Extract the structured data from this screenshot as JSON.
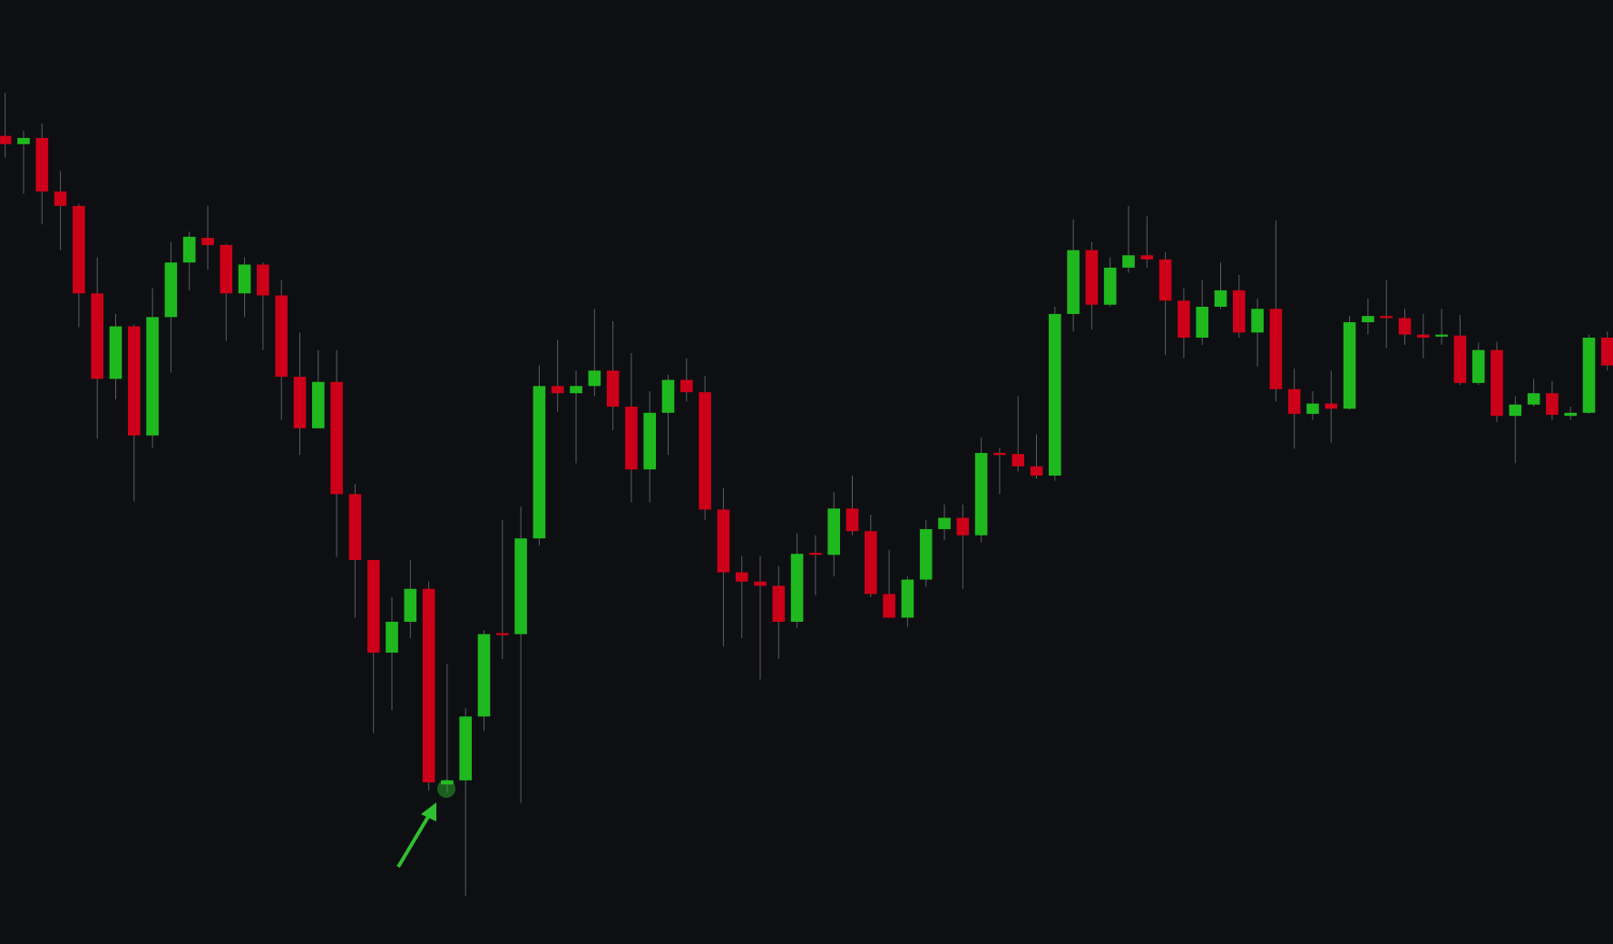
{
  "chart_data": {
    "type": "candlestick",
    "open": [
      785,
      777,
      783,
      731,
      717,
      632,
      549,
      600,
      494,
      609,
      662,
      686,
      679,
      632,
      660,
      630,
      551,
      501,
      546,
      437,
      373,
      283,
      313,
      345,
      155,
      159,
      221,
      302,
      301,
      394,
      542,
      535,
      542,
      557,
      522,
      461,
      516,
      548,
      536,
      422,
      361,
      352,
      348,
      313,
      380,
      378,
      423,
      401,
      340,
      317,
      354,
      403,
      414,
      397,
      477,
      476,
      464,
      455,
      612,
      674,
      621,
      657,
      669,
      665,
      625,
      589,
      619,
      635,
      594,
      617,
      539,
      515,
      525,
      520,
      604,
      610,
      608,
      592,
      590,
      591,
      545,
      577,
      513,
      524,
      535,
      513,
      516,
      589
    ],
    "high": [
      827,
      790,
      797,
      751,
      719,
      667,
      612,
      602,
      637,
      682,
      692,
      717,
      680,
      667,
      662,
      645,
      594,
      577,
      577,
      447,
      373,
      337,
      373,
      352,
      272,
      229,
      305,
      412,
      425,
      562,
      587,
      557,
      617,
      605,
      574,
      537,
      553,
      569,
      552,
      443,
      377,
      377,
      367,
      399,
      397,
      439,
      455,
      417,
      383,
      357,
      412,
      427,
      427,
      492,
      482,
      532,
      495,
      619,
      704,
      682,
      667,
      717,
      707,
      672,
      637,
      645,
      662,
      650,
      627,
      703,
      559,
      537,
      557,
      610,
      627,
      645,
      617,
      612,
      617,
      611,
      584,
      585,
      532,
      549,
      547,
      522,
      592,
      595
    ],
    "low": [
      764,
      729,
      699,
      674,
      599,
      491,
      529,
      430,
      482,
      555,
      635,
      655,
      586,
      609,
      577,
      509,
      475,
      501,
      376,
      317,
      205,
      227,
      297,
      149,
      147,
      47,
      207,
      277,
      137,
      387,
      517,
      467,
      532,
      499,
      429,
      429,
      475,
      527,
      412,
      289,
      297,
      257,
      277,
      307,
      339,
      357,
      397,
      337,
      317,
      308,
      347,
      392,
      345,
      390,
      437,
      459,
      452,
      450,
      595,
      597,
      619,
      652,
      657,
      572,
      569,
      582,
      617,
      589,
      561,
      527,
      481,
      509,
      487,
      519,
      592,
      579,
      582,
      569,
      582,
      543,
      543,
      507,
      467,
      522,
      509,
      509,
      515,
      557
    ],
    "close": [
      777,
      783,
      731,
      717,
      632,
      549,
      600,
      494,
      609,
      662,
      687,
      679,
      632,
      660,
      630,
      551,
      501,
      546,
      437,
      373,
      283,
      313,
      345,
      157,
      159,
      221,
      301,
      300,
      394,
      542,
      535,
      542,
      557,
      522,
      461,
      516,
      548,
      536,
      422,
      361,
      352,
      348,
      313,
      379,
      378,
      423,
      401,
      340,
      317,
      354,
      403,
      414,
      397,
      477,
      475,
      464,
      455,
      612,
      674,
      621,
      657,
      669,
      665,
      625,
      589,
      619,
      635,
      594,
      617,
      539,
      515,
      525,
      520,
      604,
      610,
      608,
      592,
      589,
      592,
      545,
      577,
      513,
      524,
      535,
      514,
      516,
      589,
      562
    ],
    "ylim": [
      0,
      917
    ],
    "up_color": "#1fb91f",
    "down_color": "#cc0018",
    "wick_color": "#5a5d63",
    "background": "#0e0f12",
    "annotation_color": "#2fbf2f"
  }
}
